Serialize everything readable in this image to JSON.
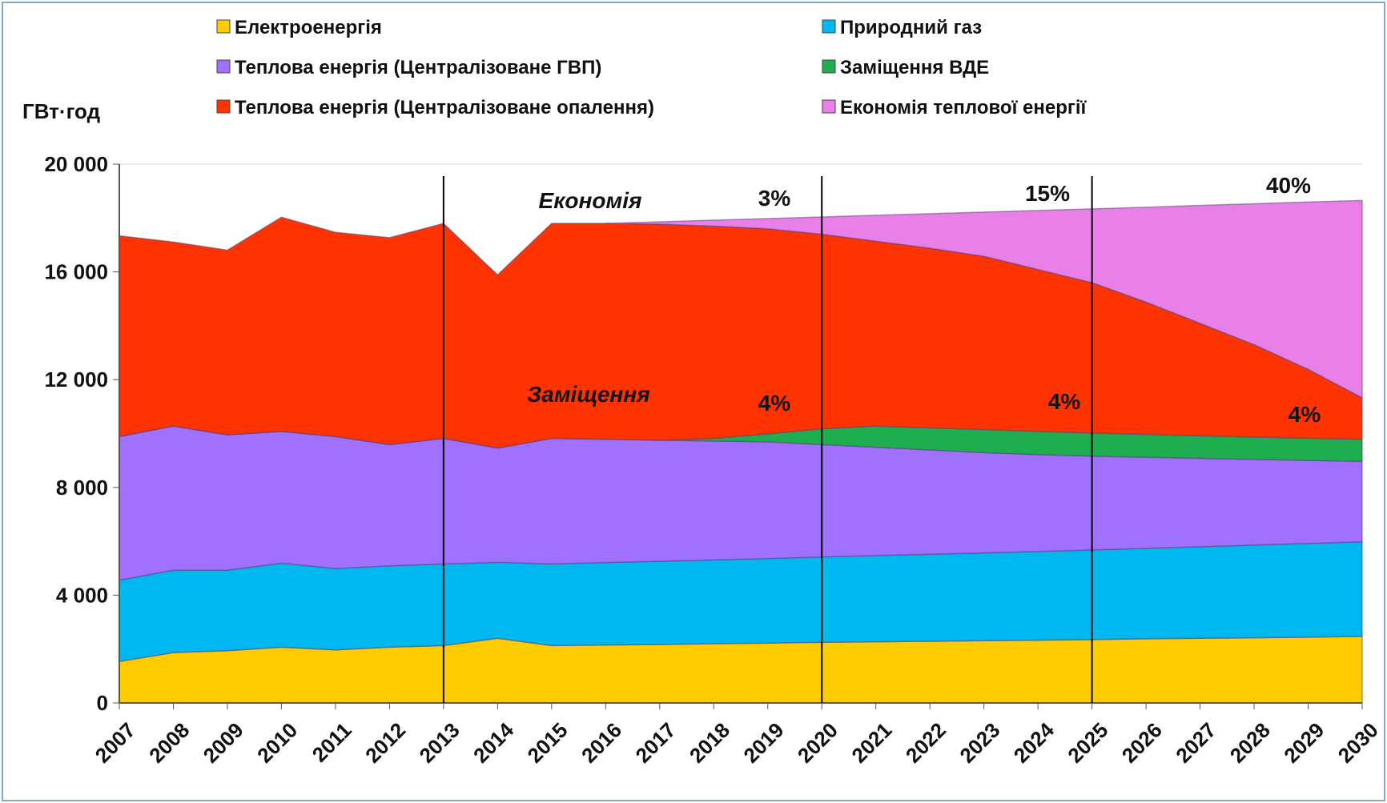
{
  "chart_data": {
    "type": "stacked-area",
    "y_label": "ГВт·год",
    "categories": [
      "2007",
      "2008",
      "2009",
      "2010",
      "2011",
      "2012",
      "2013",
      "2014",
      "2015",
      "2016",
      "2017",
      "2018",
      "2019",
      "2020",
      "2021",
      "2022",
      "2023",
      "2024",
      "2025",
      "2026",
      "2027",
      "2028",
      "2029",
      "2030"
    ],
    "series": [
      {
        "name": "Електроенергія",
        "color": "#ffcc00",
        "values": [
          1540,
          1870,
          1940,
          2070,
          1970,
          2070,
          2130,
          2400,
          2130,
          2150,
          2170,
          2200,
          2220,
          2250,
          2270,
          2290,
          2310,
          2330,
          2350,
          2380,
          2400,
          2420,
          2440,
          2470
        ]
      },
      {
        "name": "Природний газ",
        "color": "#00b8f0",
        "values": [
          3020,
          3060,
          2990,
          3120,
          3020,
          3020,
          3030,
          2820,
          3030,
          3060,
          3090,
          3110,
          3140,
          3170,
          3200,
          3230,
          3260,
          3290,
          3330,
          3360,
          3400,
          3440,
          3480,
          3510
        ]
      },
      {
        "name": "Теплова енергія (Централізоване ГВП)",
        "color": "#a070ff",
        "values": [
          5330,
          5350,
          5020,
          4890,
          4900,
          4500,
          4660,
          4240,
          4660,
          4580,
          4490,
          4410,
          4330,
          4170,
          4020,
          3870,
          3720,
          3600,
          3480,
          3380,
          3280,
          3180,
          3080,
          2990
        ]
      },
      {
        "name": "Заміщення ВДЕ",
        "color": "#1fae4f",
        "values": [
          0,
          0,
          0,
          0,
          0,
          0,
          0,
          0,
          0,
          0,
          0,
          100,
          300,
          590,
          790,
          820,
          860,
          860,
          860,
          850,
          840,
          830,
          825,
          820
        ]
      },
      {
        "name": "Теплова енергія (Централізоване опалення)",
        "color": "#ff3300",
        "values": [
          7450,
          6830,
          6860,
          7950,
          7580,
          7680,
          7980,
          6430,
          7980,
          8010,
          8020,
          7880,
          7610,
          7220,
          6860,
          6670,
          6430,
          6010,
          5580,
          4910,
          4170,
          3430,
          2560,
          1540
        ]
      },
      {
        "name": "Економія теплової енергії",
        "color": "#e880e8",
        "values": [
          null,
          null,
          null,
          null,
          null,
          null,
          null,
          null,
          null,
          0,
          90,
          220,
          380,
          640,
          960,
          1280,
          1640,
          2190,
          2740,
          3520,
          4380,
          5230,
          6210,
          7320
        ]
      }
    ],
    "legend_order": [
      0,
      1,
      2,
      3,
      4,
      5
    ],
    "ylim": [
      0,
      20000
    ],
    "yticks": [
      0,
      {
        "value": 4000,
        "label": "4 000"
      },
      {
        "value": 8000,
        "label": "8 000"
      },
      {
        "value": 12000,
        "label": "12 000"
      },
      {
        "value": 16000,
        "label": "16 000"
      },
      {
        "value": 20000,
        "label": "20 000"
      }
    ],
    "vertical_lines": [
      "2013",
      "2020",
      "2025"
    ],
    "annotations": [
      "Економія",
      "Заміщення",
      "3%",
      "15%",
      "40%",
      "4%",
      "4%",
      "4%"
    ]
  }
}
